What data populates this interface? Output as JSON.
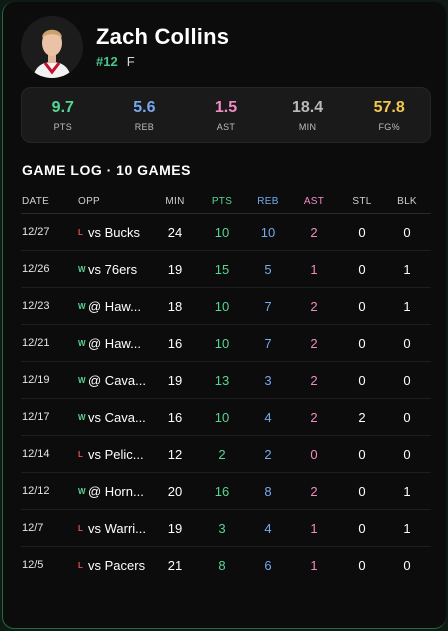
{
  "player": {
    "name": "Zach Collins",
    "number": "#12",
    "position": "F"
  },
  "summary": [
    {
      "value": "9.7",
      "label": "PTS",
      "color": "#57d692"
    },
    {
      "value": "5.6",
      "label": "REB",
      "color": "#78a8ee"
    },
    {
      "value": "1.5",
      "label": "AST",
      "color": "#f08cc4"
    },
    {
      "value": "18.4",
      "label": "MIN",
      "color": "#b9b9b9"
    },
    {
      "value": "57.8",
      "label": "FG%",
      "color": "#f2c94c"
    }
  ],
  "game_log": {
    "title": "GAME LOG · 10 GAMES",
    "columns": [
      "DATE",
      "OPP",
      "MIN",
      "PTS",
      "REB",
      "AST",
      "STL",
      "BLK"
    ],
    "column_colors": {
      "PTS": "#57d692",
      "REB": "#78a8ee",
      "AST": "#f08cc4"
    },
    "result_colors": {
      "W": "#57d692",
      "L": "#e55353"
    },
    "games": [
      {
        "date": "12/27",
        "result": "L",
        "opp": "vs Bucks",
        "min": "24",
        "pts": "10",
        "reb": "10",
        "ast": "2",
        "stl": "0",
        "blk": "0"
      },
      {
        "date": "12/26",
        "result": "W",
        "opp": "vs 76ers",
        "min": "19",
        "pts": "15",
        "reb": "5",
        "ast": "1",
        "stl": "0",
        "blk": "1"
      },
      {
        "date": "12/23",
        "result": "W",
        "opp": "@ Haw...",
        "min": "18",
        "pts": "10",
        "reb": "7",
        "ast": "2",
        "stl": "0",
        "blk": "1"
      },
      {
        "date": "12/21",
        "result": "W",
        "opp": "@ Haw...",
        "min": "16",
        "pts": "10",
        "reb": "7",
        "ast": "2",
        "stl": "0",
        "blk": "0"
      },
      {
        "date": "12/19",
        "result": "W",
        "opp": "@ Cava...",
        "min": "19",
        "pts": "13",
        "reb": "3",
        "ast": "2",
        "stl": "0",
        "blk": "0"
      },
      {
        "date": "12/17",
        "result": "W",
        "opp": "vs Cava...",
        "min": "16",
        "pts": "10",
        "reb": "4",
        "ast": "2",
        "stl": "2",
        "blk": "0"
      },
      {
        "date": "12/14",
        "result": "L",
        "opp": "vs Pelic...",
        "min": "12",
        "pts": "2",
        "reb": "2",
        "ast": "0",
        "stl": "0",
        "blk": "0"
      },
      {
        "date": "12/12",
        "result": "W",
        "opp": "@ Horn...",
        "min": "20",
        "pts": "16",
        "reb": "8",
        "ast": "2",
        "stl": "0",
        "blk": "1"
      },
      {
        "date": "12/7",
        "result": "L",
        "opp": "vs Warri...",
        "min": "19",
        "pts": "3",
        "reb": "4",
        "ast": "1",
        "stl": "0",
        "blk": "1"
      },
      {
        "date": "12/5",
        "result": "L",
        "opp": "vs Pacers",
        "min": "21",
        "pts": "8",
        "reb": "6",
        "ast": "1",
        "stl": "0",
        "blk": "0"
      }
    ]
  }
}
